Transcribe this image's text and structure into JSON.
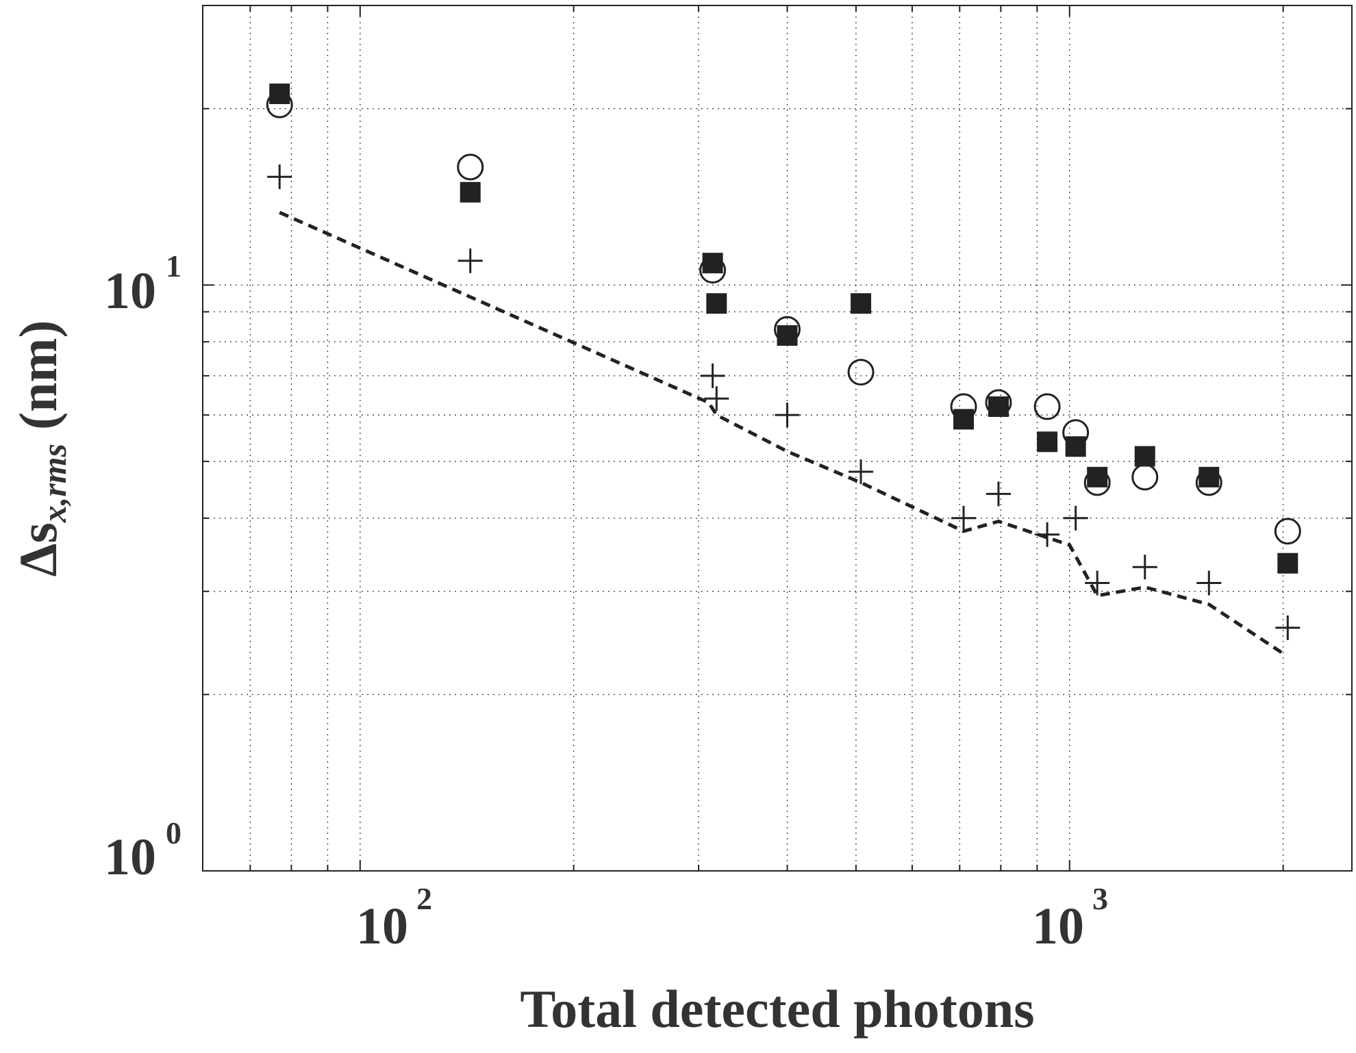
{
  "chart_data": {
    "type": "scatter",
    "scale": {
      "x": "log",
      "y": "log"
    },
    "xlabel": "Total detected photons",
    "ylabel": {
      "main": "Δs",
      "sub": "x,rms",
      "units": "(nm)"
    },
    "xlim": [
      60,
      2500
    ],
    "ylim": [
      1,
      30
    ],
    "grid": true,
    "x_ticks": [
      {
        "base": "10",
        "exp": "2",
        "value": 100
      },
      {
        "base": "10",
        "exp": "3",
        "value": 1000
      }
    ],
    "y_ticks": [
      {
        "base": "10",
        "exp": "0",
        "value": 1
      },
      {
        "base": "10",
        "exp": "1",
        "value": 10
      }
    ],
    "series": [
      {
        "name": "filled squares",
        "marker": "square",
        "points": [
          {
            "x": 77,
            "y": 21.2
          },
          {
            "x": 143,
            "y": 14.4
          },
          {
            "x": 314,
            "y": 10.9
          },
          {
            "x": 318,
            "y": 9.3
          },
          {
            "x": 400,
            "y": 8.2
          },
          {
            "x": 508,
            "y": 9.3
          },
          {
            "x": 709,
            "y": 5.9
          },
          {
            "x": 794,
            "y": 6.2
          },
          {
            "x": 930,
            "y": 5.4
          },
          {
            "x": 1020,
            "y": 5.3
          },
          {
            "x": 1094,
            "y": 4.7
          },
          {
            "x": 1277,
            "y": 5.1
          },
          {
            "x": 1572,
            "y": 4.7
          },
          {
            "x": 2030,
            "y": 3.35
          }
        ]
      },
      {
        "name": "open circles",
        "marker": "circle",
        "points": [
          {
            "x": 77,
            "y": 20.3
          },
          {
            "x": 143,
            "y": 15.9
          },
          {
            "x": 314,
            "y": 10.6
          },
          {
            "x": 400,
            "y": 8.4
          },
          {
            "x": 508,
            "y": 7.1
          },
          {
            "x": 709,
            "y": 6.2
          },
          {
            "x": 794,
            "y": 6.3
          },
          {
            "x": 930,
            "y": 6.2
          },
          {
            "x": 1020,
            "y": 5.6
          },
          {
            "x": 1094,
            "y": 4.6
          },
          {
            "x": 1277,
            "y": 4.7
          },
          {
            "x": 1572,
            "y": 4.6
          },
          {
            "x": 2030,
            "y": 3.8
          }
        ]
      },
      {
        "name": "plus",
        "marker": "plus",
        "points": [
          {
            "x": 77,
            "y": 15.3
          },
          {
            "x": 143,
            "y": 11.0
          },
          {
            "x": 314,
            "y": 7.0
          },
          {
            "x": 318,
            "y": 6.4
          },
          {
            "x": 400,
            "y": 6.0
          },
          {
            "x": 508,
            "y": 4.8
          },
          {
            "x": 709,
            "y": 4.0
          },
          {
            "x": 794,
            "y": 4.4
          },
          {
            "x": 930,
            "y": 3.75
          },
          {
            "x": 1020,
            "y": 4.0
          },
          {
            "x": 1094,
            "y": 3.1
          },
          {
            "x": 1277,
            "y": 3.3
          },
          {
            "x": 1572,
            "y": 3.1
          },
          {
            "x": 2030,
            "y": 2.6
          }
        ]
      },
      {
        "name": "dashed line",
        "marker": "dashed-line",
        "points": [
          {
            "x": 77,
            "y": 13.3
          },
          {
            "x": 310,
            "y": 6.3
          },
          {
            "x": 318,
            "y": 6.0
          },
          {
            "x": 400,
            "y": 5.2
          },
          {
            "x": 508,
            "y": 4.6
          },
          {
            "x": 709,
            "y": 3.8
          },
          {
            "x": 794,
            "y": 3.95
          },
          {
            "x": 1000,
            "y": 3.6
          },
          {
            "x": 1094,
            "y": 2.95
          },
          {
            "x": 1277,
            "y": 3.05
          },
          {
            "x": 1572,
            "y": 2.85
          },
          {
            "x": 2000,
            "y": 2.35
          }
        ]
      }
    ]
  }
}
